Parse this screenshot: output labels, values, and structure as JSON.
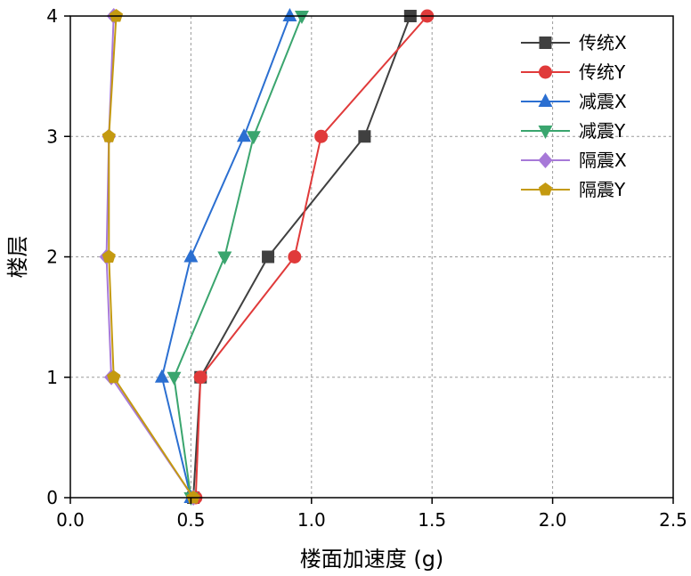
{
  "chart_data": {
    "type": "line",
    "xlabel": "楼面加速度 (g)",
    "ylabel": "楼层",
    "xlim": [
      0,
      2.5
    ],
    "ylim": [
      0,
      4
    ],
    "xticks": [
      "0.0",
      "0.5",
      "1.0",
      "1.5",
      "2.0",
      "2.5"
    ],
    "yticks": [
      "0",
      "1",
      "2",
      "3",
      "4"
    ],
    "grid": true,
    "legend_position": "top-right",
    "series": [
      {
        "name": "传统X",
        "color": "#404040",
        "marker": "square",
        "points": [
          {
            "x": 0.51,
            "y": 0
          },
          {
            "x": 0.54,
            "y": 1
          },
          {
            "x": 0.82,
            "y": 2
          },
          {
            "x": 1.22,
            "y": 3
          },
          {
            "x": 1.41,
            "y": 4
          }
        ]
      },
      {
        "name": "传统Y",
        "color": "#e03a3a",
        "marker": "circle",
        "points": [
          {
            "x": 0.52,
            "y": 0
          },
          {
            "x": 0.54,
            "y": 1
          },
          {
            "x": 0.93,
            "y": 2
          },
          {
            "x": 1.04,
            "y": 3
          },
          {
            "x": 1.48,
            "y": 4
          }
        ]
      },
      {
        "name": "减震X",
        "color": "#2b6fd1",
        "marker": "triangle-up",
        "points": [
          {
            "x": 0.5,
            "y": 0
          },
          {
            "x": 0.38,
            "y": 1
          },
          {
            "x": 0.5,
            "y": 2
          },
          {
            "x": 0.72,
            "y": 3
          },
          {
            "x": 0.91,
            "y": 4
          }
        ]
      },
      {
        "name": "减震Y",
        "color": "#3aa56e",
        "marker": "triangle-down",
        "points": [
          {
            "x": 0.5,
            "y": 0
          },
          {
            "x": 0.43,
            "y": 1
          },
          {
            "x": 0.64,
            "y": 2
          },
          {
            "x": 0.76,
            "y": 3
          },
          {
            "x": 0.96,
            "y": 4
          }
        ]
      },
      {
        "name": "隔震X",
        "color": "#a779d8",
        "marker": "diamond",
        "points": [
          {
            "x": 0.51,
            "y": 0
          },
          {
            "x": 0.17,
            "y": 1
          },
          {
            "x": 0.15,
            "y": 2
          },
          {
            "x": 0.16,
            "y": 3
          },
          {
            "x": 0.18,
            "y": 4
          }
        ]
      },
      {
        "name": "隔震Y",
        "color": "#c49a10",
        "marker": "pentagon",
        "points": [
          {
            "x": 0.51,
            "y": 0
          },
          {
            "x": 0.18,
            "y": 1
          },
          {
            "x": 0.16,
            "y": 2
          },
          {
            "x": 0.16,
            "y": 3
          },
          {
            "x": 0.19,
            "y": 4
          }
        ]
      }
    ]
  }
}
